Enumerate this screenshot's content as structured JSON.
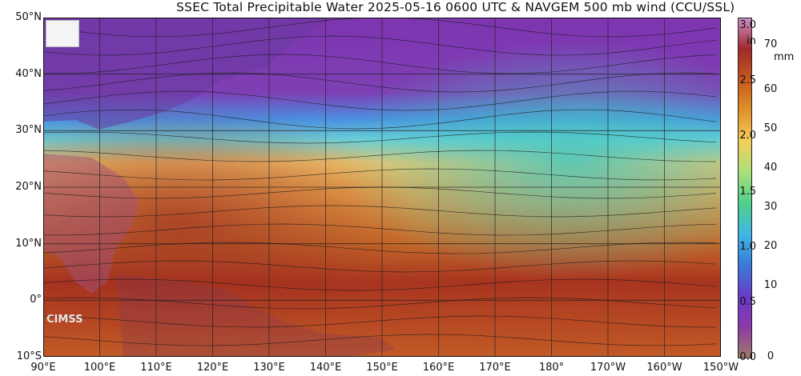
{
  "title": "SSEC Total Precipitable Water  2025-05-16 0600 UTC & NAVGEM 500 mb wind (CCU/SSL)",
  "lat_labels": [
    "50°N",
    "40°N",
    "30°N",
    "20°N",
    "10°N",
    "0°",
    "10°S"
  ],
  "lon_labels": [
    "90°E",
    "100°E",
    "110°E",
    "120°E",
    "130°E",
    "140°E",
    "150°E",
    "160°E",
    "170°E",
    "180°",
    "170°W",
    "160°W",
    "150°W"
  ],
  "colorbar": {
    "unit_in": "in",
    "unit_mm": "mm",
    "in_ticks": [
      "3.0",
      "2.5",
      "2.0",
      "1.5",
      "1.0",
      "0.5",
      "0.0"
    ],
    "mm_ticks": [
      "70",
      "60",
      "50",
      "40",
      "30",
      "20",
      "10",
      "0"
    ],
    "colors": [
      "#c98cc7",
      "#a02a2a",
      "#c85a1e",
      "#e0932a",
      "#f5cf5a",
      "#a8e07a",
      "#4fd08a",
      "#3fb6e6",
      "#3a7ad8",
      "#6a3bc8",
      "#8a3aa8",
      "#a07a6a"
    ]
  },
  "logo_text": "CIMSS"
}
